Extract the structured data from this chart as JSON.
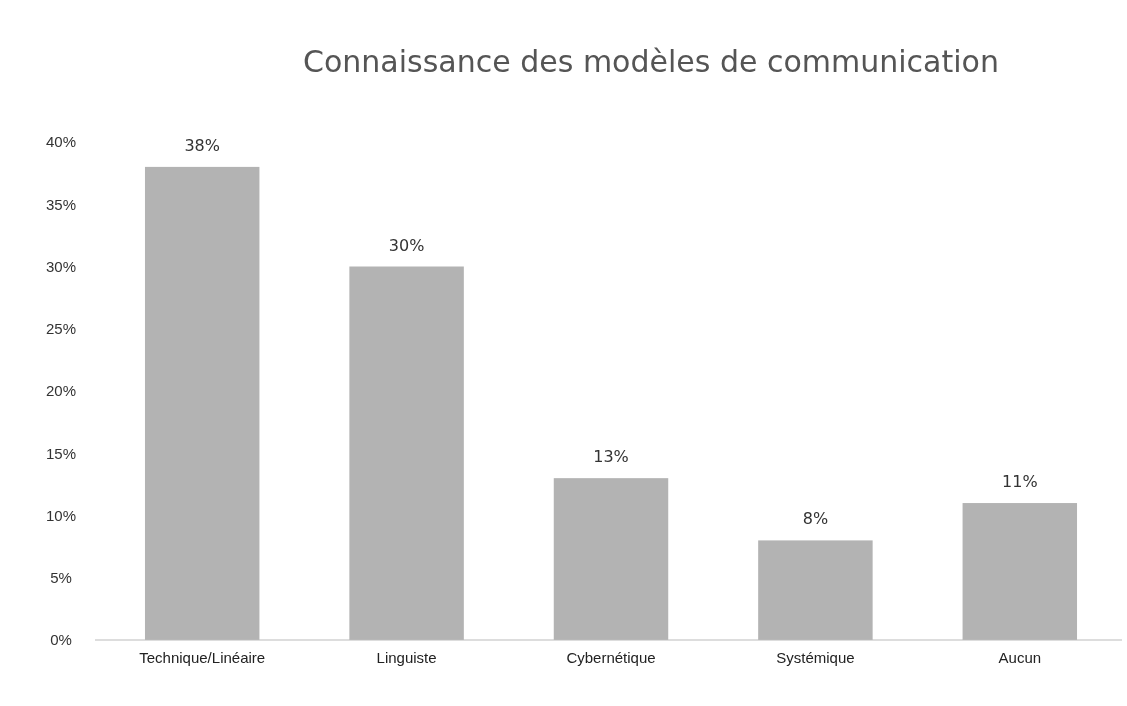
{
  "chart_data": {
    "type": "bar",
    "title": "Connaissance des modèles de communication",
    "categories": [
      "Technique/Linéaire",
      "Linguiste",
      "Cybernétique",
      "Systémique",
      "Aucun"
    ],
    "values": [
      38,
      30,
      13,
      8,
      11
    ],
    "value_labels": [
      "38%",
      "30%",
      "13%",
      "8%",
      "11%"
    ],
    "color": "#b3b3b3",
    "ylim": [
      0,
      40
    ],
    "yticks": [
      {
        "value": 0,
        "label": "0%"
      },
      {
        "value": 5,
        "label": "5%"
      },
      {
        "value": 10,
        "label": "10%"
      },
      {
        "value": 15,
        "label": "15%"
      },
      {
        "value": 20,
        "label": "20%"
      },
      {
        "value": 25,
        "label": "25%"
      },
      {
        "value": 30,
        "label": "30%"
      },
      {
        "value": 35,
        "label": "35%"
      },
      {
        "value": 40,
        "label": "40%"
      }
    ],
    "grid": false
  }
}
